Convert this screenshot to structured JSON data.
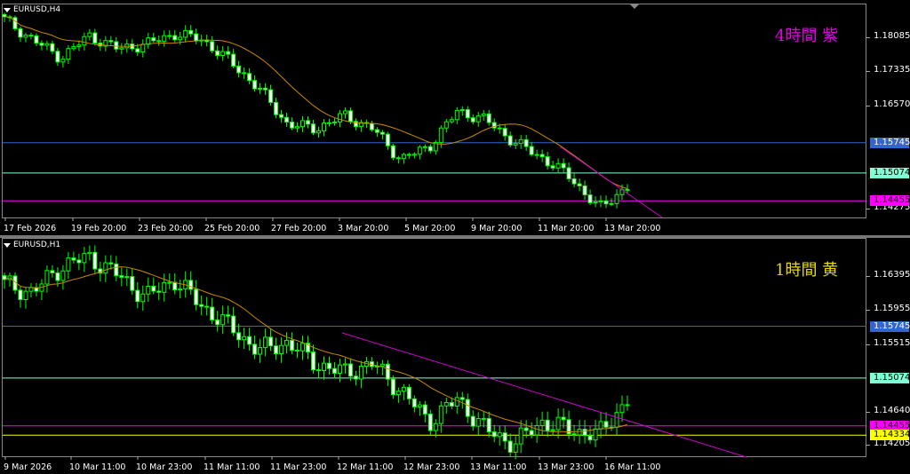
{
  "charts": [
    {
      "title": "EURUSD,H4",
      "label": "4時間  紫",
      "label_color": "#e000e0",
      "price_ticks": [
        "1.18085",
        "1.17335",
        "1.16570",
        "1.14275"
      ],
      "levels": [
        {
          "value": "1.15745",
          "color": "#3366cc",
          "text_color": "#ffffff"
        },
        {
          "value": "1.15074",
          "color": "#7fffd4",
          "text_color": "#000000"
        },
        {
          "value": "1.14455",
          "color": "#ff00ff",
          "text_color": "#000000"
        }
      ],
      "time_labels": [
        "17 Feb 2026",
        "19 Feb 20:00",
        "23 Feb 20:00",
        "25 Feb 20:00",
        "27 Feb 20:00",
        "3 Mar 20:00",
        "5 Mar 20:00",
        "9 Mar 20:00",
        "11 Mar 20:00",
        "13 Mar 20:00"
      ],
      "approx_closes": [
        1.1848,
        1.1803,
        1.1763,
        1.1812,
        1.1783,
        1.1793,
        1.1816,
        1.1803,
        1.1753,
        1.1694,
        1.1615,
        1.1606,
        1.1635,
        1.1606,
        1.1537,
        1.1566,
        1.1645,
        1.1625,
        1.1576,
        1.1541,
        1.1497,
        1.1428,
        1.1478
      ]
    },
    {
      "title": "EURUSD,H1",
      "label": "1時間  黄",
      "label_color": "#e6d800",
      "price_ticks": [
        "1.16395",
        "1.15955",
        "1.15515",
        "1.14640",
        "1.14205"
      ],
      "levels": [
        {
          "value": "1.15745",
          "color": "#3366cc",
          "text_color": "#ffffff"
        },
        {
          "value": "1.15074",
          "color": "#7fffd4",
          "text_color": "#000000"
        },
        {
          "value": "1.14455",
          "color": "#ff00ff",
          "text_color": "#000000"
        },
        {
          "value": "1.14334",
          "color": "#ffff00",
          "text_color": "#000000"
        }
      ],
      "time_labels": [
        "9 Mar 2026",
        "10 Mar 11:00",
        "10 Mar 23:00",
        "11 Mar 11:00",
        "11 Mar 23:00",
        "12 Mar 11:00",
        "12 Mar 23:00",
        "13 Mar 11:00",
        "13 Mar 23:00",
        "16 Mar 11:00"
      ],
      "approx_closes": [
        1.1629,
        1.1618,
        1.1652,
        1.1664,
        1.1641,
        1.1612,
        1.1635,
        1.16,
        1.1572,
        1.1543,
        1.1554,
        1.1526,
        1.1514,
        1.1526,
        1.1491,
        1.1451,
        1.148,
        1.144,
        1.1422,
        1.1451,
        1.144,
        1.1434,
        1.148
      ]
    }
  ],
  "colors": {
    "candle": "#00ff00",
    "ma": "#c88a00",
    "trendline": "#d000d0"
  }
}
